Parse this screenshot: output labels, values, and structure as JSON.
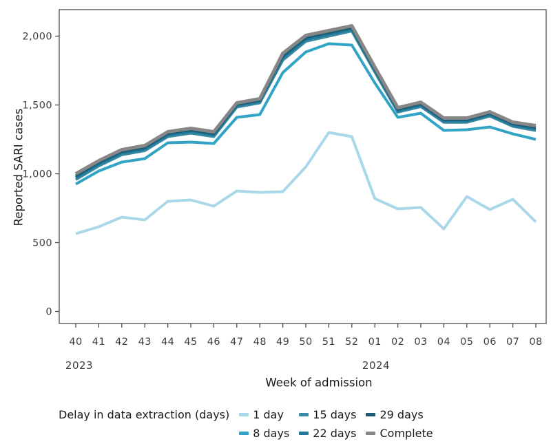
{
  "figure": {
    "background": "#ffffff",
    "panel_border_color": "#4d4d4d",
    "tick_color": "#4d4d4d",
    "tick_label_color": "#404040"
  },
  "axes": {
    "y_title": "Reported SARI cases",
    "x_title": "Week of admission",
    "y_ticks": [
      {
        "value": 0,
        "label": "0"
      },
      {
        "value": 500,
        "label": "500"
      },
      {
        "value": 1000,
        "label": "1,000"
      },
      {
        "value": 1500,
        "label": "1,500"
      },
      {
        "value": 2000,
        "label": "2,000"
      }
    ],
    "year_labels": [
      {
        "text": "2023"
      },
      {
        "text": "2024"
      }
    ]
  },
  "legend": {
    "title": "Delay in data extraction (days)",
    "position": "bottom",
    "columns": [
      [
        0,
        1
      ],
      [
        2,
        3
      ],
      [
        4,
        5
      ]
    ],
    "items": [
      {
        "label": "1 day",
        "color": "#a9d8e9"
      },
      {
        "label": "8 days",
        "color": "#31a3c5"
      },
      {
        "label": "15 days",
        "color": "#3b8aa3"
      },
      {
        "label": "22 days",
        "color": "#20799a"
      },
      {
        "label": "29 days",
        "color": "#1b5b74"
      },
      {
        "label": "Complete",
        "color": "#878787"
      }
    ]
  },
  "chart_data": {
    "type": "line",
    "title": "",
    "xlabel": "Week of admission",
    "ylabel": "Reported SARI cases",
    "x": [
      "40",
      "41",
      "42",
      "43",
      "44",
      "45",
      "46",
      "47",
      "48",
      "49",
      "50",
      "51",
      "52",
      "01",
      "02",
      "03",
      "04",
      "05",
      "06",
      "07",
      "08"
    ],
    "x_year_groups": [
      {
        "year": "2023",
        "weeks": [
          "40",
          "41",
          "42",
          "43",
          "44",
          "45",
          "46",
          "47",
          "48",
          "49",
          "50",
          "51",
          "52"
        ]
      },
      {
        "year": "2024",
        "weeks": [
          "01",
          "02",
          "03",
          "04",
          "05",
          "06",
          "07",
          "08"
        ]
      }
    ],
    "ylim": [
      0,
      2190
    ],
    "grid": false,
    "legend_title": "Delay in data extraction (days)",
    "legend_position": "bottom",
    "series": [
      {
        "name": "1 day",
        "color": "#a9d8e9",
        "values": [
          565,
          615,
          685,
          665,
          800,
          810,
          765,
          875,
          865,
          870,
          1050,
          1300,
          1270,
          820,
          745,
          755,
          600,
          835,
          740,
          815,
          650
        ]
      },
      {
        "name": "8 days",
        "color": "#31a3c5",
        "values": [
          925,
          1020,
          1085,
          1110,
          1225,
          1230,
          1220,
          1410,
          1430,
          1735,
          1885,
          1945,
          1935,
          1660,
          1410,
          1440,
          1315,
          1320,
          1340,
          1290,
          1250
        ]
      },
      {
        "name": "15 days",
        "color": "#3b8aa3",
        "values": [
          958,
          1057,
          1138,
          1168,
          1270,
          1295,
          1270,
          1485,
          1515,
          1826,
          1962,
          2000,
          2037,
          1740,
          1448,
          1488,
          1374,
          1374,
          1419,
          1345,
          1314
        ]
      },
      {
        "name": "22 days",
        "color": "#20799a",
        "values": [
          972,
          1070,
          1150,
          1180,
          1282,
          1307,
          1282,
          1495,
          1525,
          1842,
          1976,
          2013,
          2050,
          1752,
          1459,
          1499,
          1384,
          1384,
          1429,
          1355,
          1326
        ]
      },
      {
        "name": "29 days",
        "color": "#1b5b74",
        "values": [
          985,
          1082,
          1162,
          1192,
          1293,
          1318,
          1293,
          1505,
          1535,
          1858,
          1990,
          2026,
          2062,
          1763,
          1469,
          1509,
          1394,
          1394,
          1439,
          1365,
          1338
        ]
      },
      {
        "name": "Complete",
        "color": "#878787",
        "values": [
          1000,
          1095,
          1175,
          1205,
          1305,
          1330,
          1305,
          1515,
          1545,
          1875,
          2005,
          2040,
          2075,
          1775,
          1480,
          1520,
          1405,
          1405,
          1450,
          1375,
          1350
        ]
      }
    ]
  }
}
